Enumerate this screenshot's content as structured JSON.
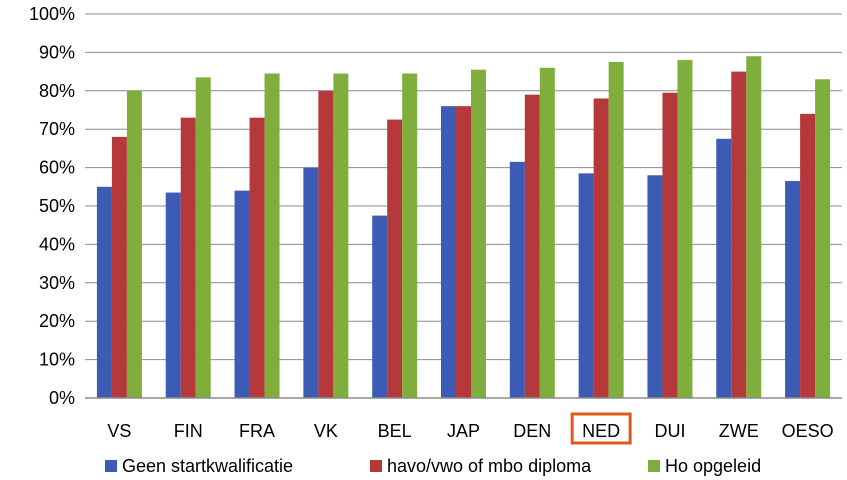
{
  "chart_data": {
    "type": "bar",
    "categories": [
      "VS",
      "FIN",
      "FRA",
      "VK",
      "BEL",
      "JAP",
      "DEN",
      "NED",
      "DUI",
      "ZWE",
      "OESO"
    ],
    "highlighted_category": "NED",
    "highlight_color": "#e05a1e",
    "series": [
      {
        "name": "Geen startkwalificatie",
        "color": "#3b5bb5",
        "values": [
          55,
          53.5,
          54,
          60,
          47.5,
          76,
          61.5,
          58.5,
          58,
          67.5,
          56.5
        ]
      },
      {
        "name": "havo/vwo of mbo diploma",
        "color": "#b5393a",
        "values": [
          68,
          73,
          73,
          80,
          72.5,
          76,
          79,
          78,
          79.5,
          85,
          74
        ]
      },
      {
        "name": "Ho opgeleid",
        "color": "#7fae3c",
        "values": [
          80,
          83.5,
          84.5,
          84.5,
          84.5,
          85.5,
          86,
          87.5,
          88,
          89,
          83
        ]
      }
    ],
    "yticks": [
      "0%",
      "10%",
      "20%",
      "30%",
      "40%",
      "50%",
      "60%",
      "70%",
      "80%",
      "90%",
      "100%"
    ],
    "ylim": [
      0,
      100
    ],
    "grid": true,
    "legend_position": "bottom",
    "title": "",
    "xlabel": "",
    "ylabel": ""
  }
}
